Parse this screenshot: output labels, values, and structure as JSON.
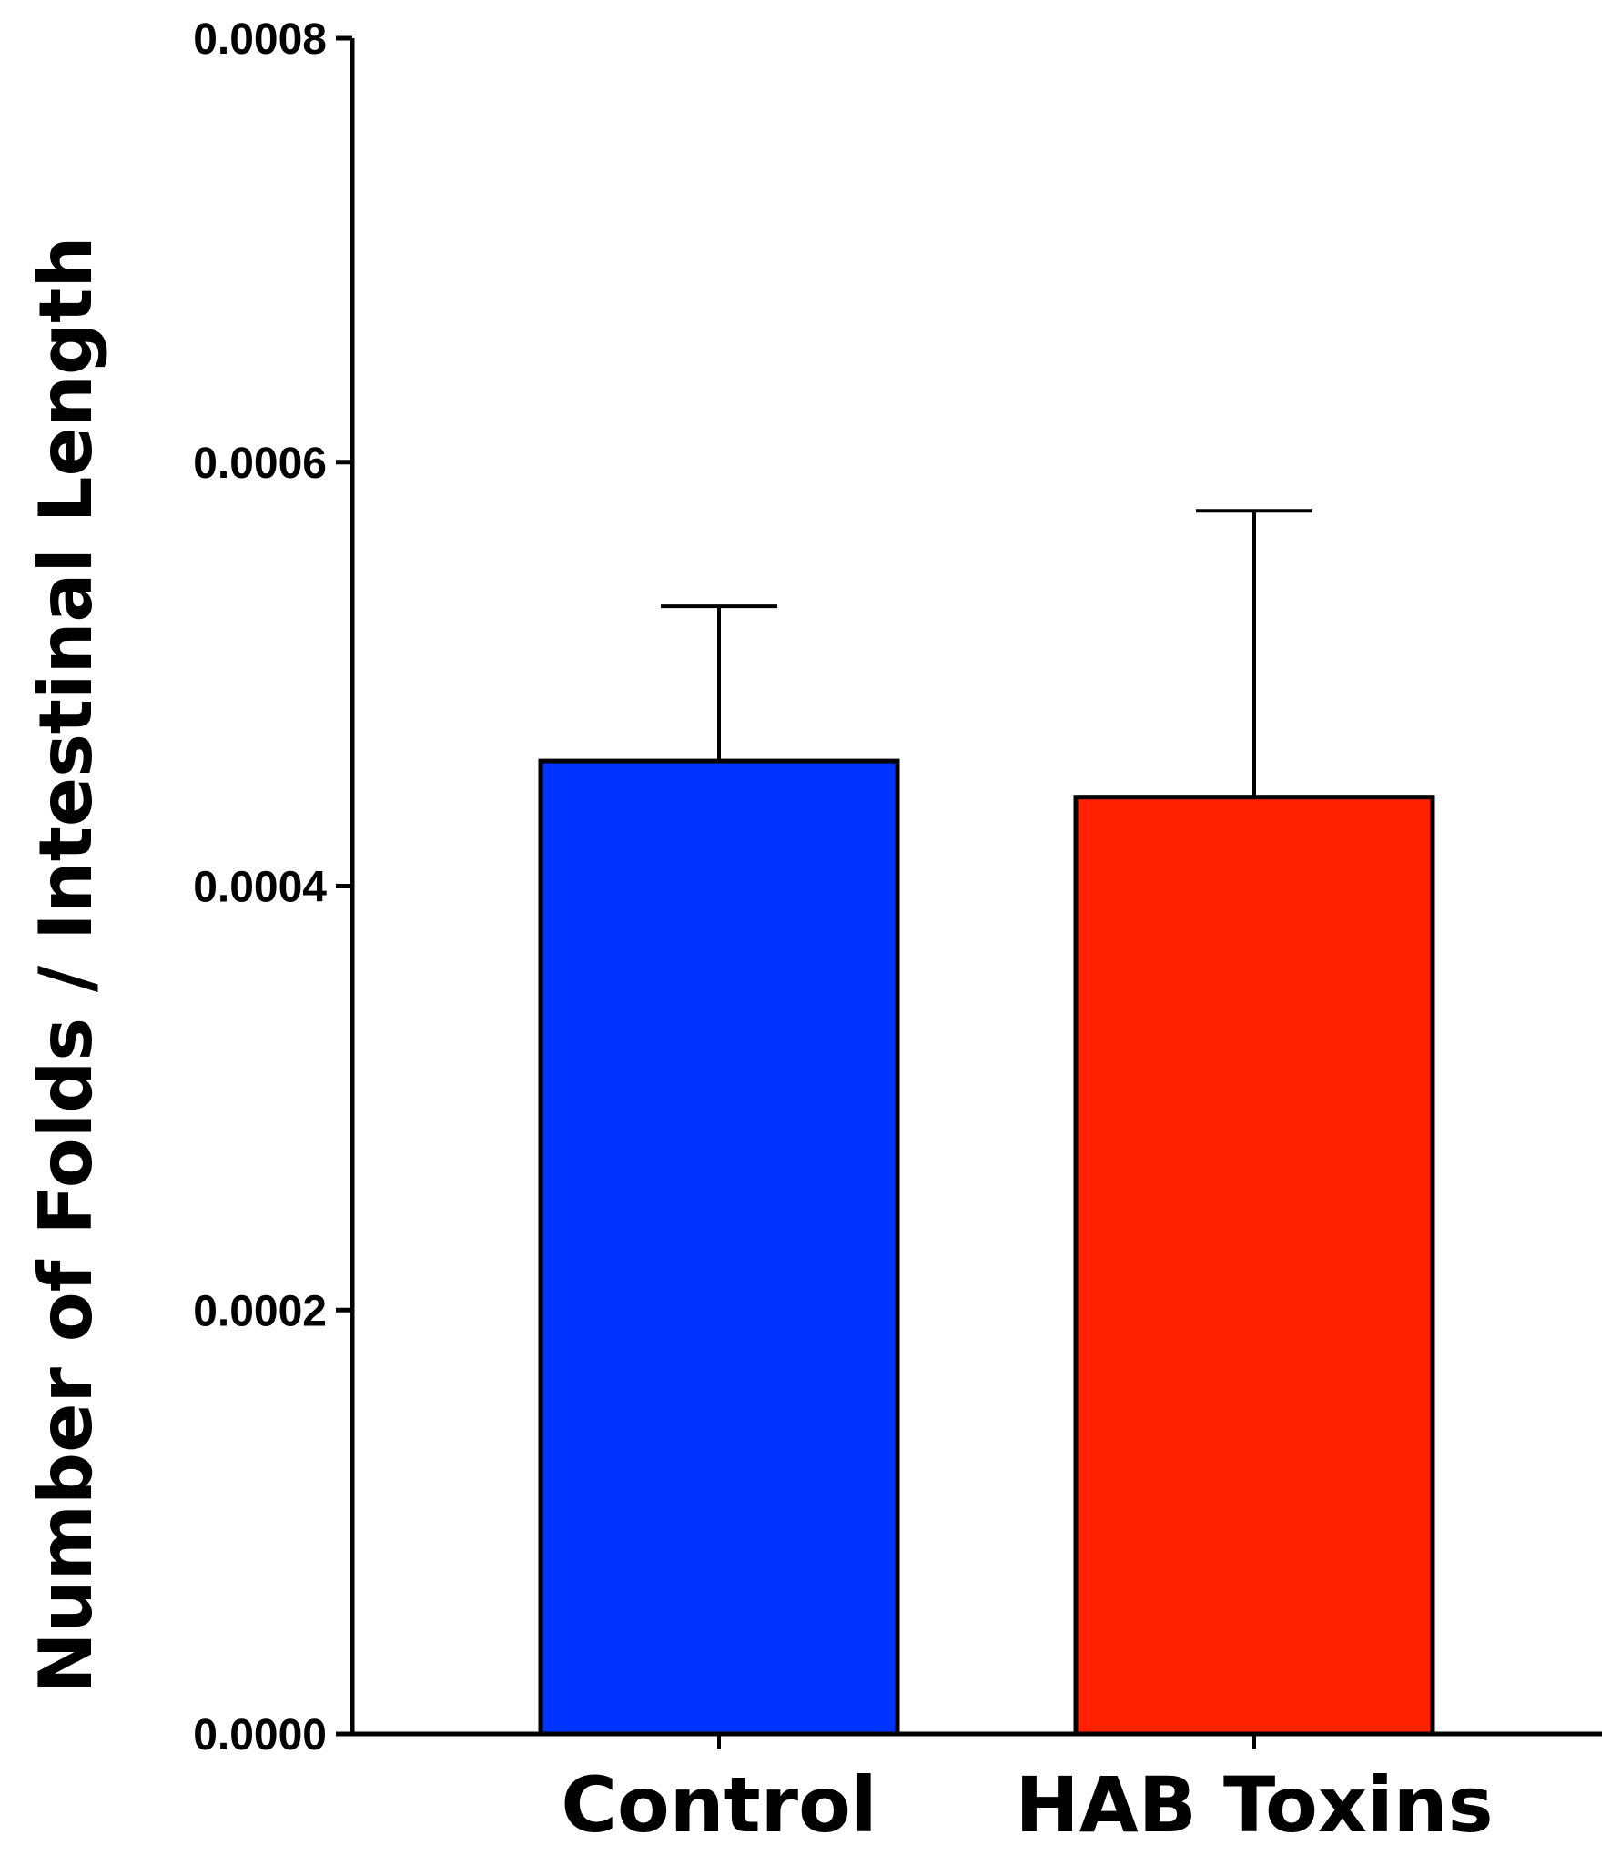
{
  "chart_data": {
    "type": "bar",
    "title": "",
    "xlabel": "",
    "ylabel": "Number of Folds / Intestinal Length",
    "categories": [
      "Control",
      "HAB Toxins"
    ],
    "values": [
      0.000459,
      0.000442
    ],
    "error_upper": [
      0.000532,
      0.000577
    ],
    "colors": [
      "#0033ff",
      "#ff2200"
    ],
    "ylim": [
      0,
      0.0008
    ],
    "yticks": [
      "0.0000",
      "0.0002",
      "0.0004",
      "0.0006",
      "0.0008"
    ],
    "grid": false,
    "legend": "none"
  }
}
